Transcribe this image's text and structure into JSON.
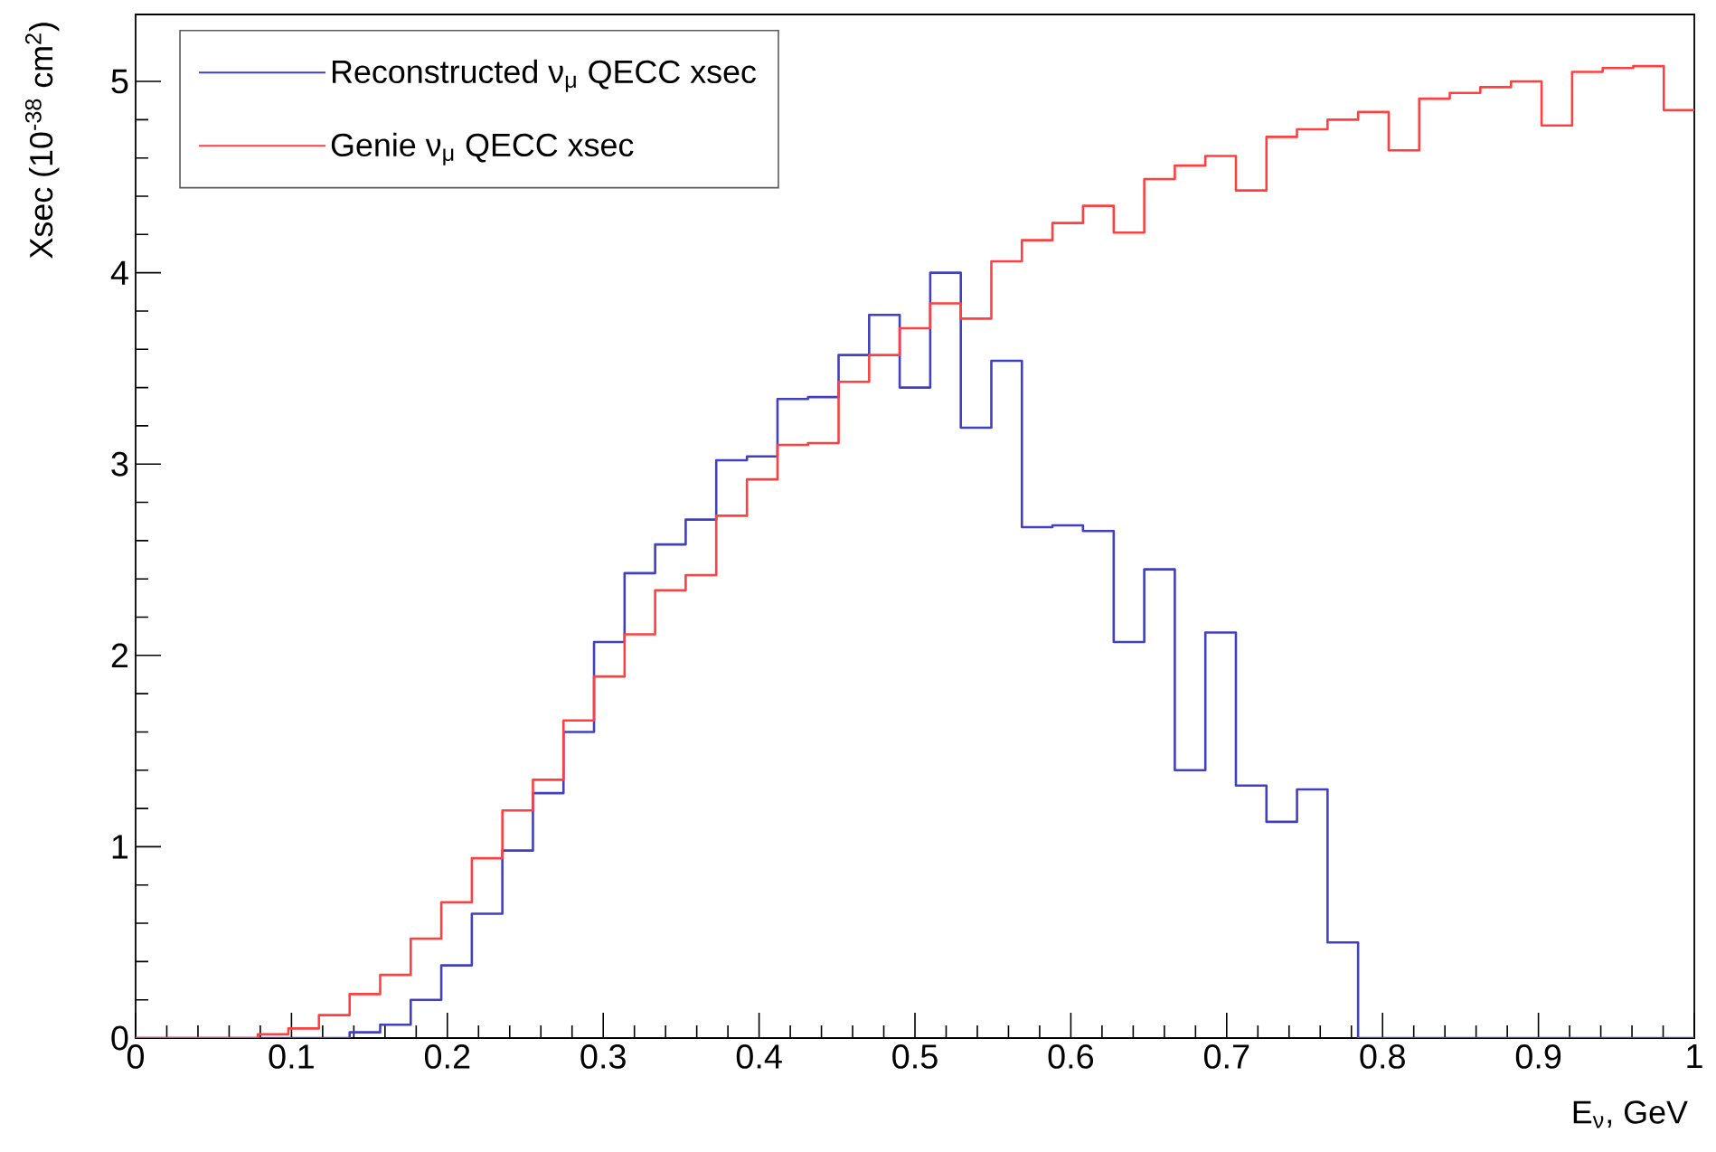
{
  "chart_data": {
    "type": "histogram",
    "xlabel": "E$_{ν}$, GeV",
    "ylabel": "Xsec (10$^{-38}$ cm$^{2}$)",
    "bins": [
      0,
      0.0196,
      0.0392,
      0.0588,
      0.0784,
      0.098,
      0.1176,
      0.1373,
      0.1569,
      0.1765,
      0.1961,
      0.2157,
      0.2353,
      0.2549,
      0.2745,
      0.2941,
      0.3137,
      0.3333,
      0.3529,
      0.3725,
      0.3922,
      0.4118,
      0.4314,
      0.451,
      0.4706,
      0.4902,
      0.5098,
      0.5294,
      0.549,
      0.5686,
      0.5882,
      0.6078,
      0.6275,
      0.6471,
      0.6667,
      0.6863,
      0.7059,
      0.7255,
      0.7451,
      0.7647,
      0.7843,
      0.8039,
      0.8235,
      0.8431,
      0.8627,
      0.8824,
      0.902,
      0.9216,
      0.9412,
      0.9608,
      0.9804,
      1
    ],
    "series": [
      {
        "name": "Reconstructed ν$_{μ}$ QECC xsec",
        "color": "#4040c0",
        "values": [
          0,
          0,
          0,
          0,
          0,
          0,
          0,
          0.03,
          0.07,
          0.2,
          0.38,
          0.65,
          0.98,
          1.28,
          1.6,
          2.07,
          2.43,
          2.58,
          2.71,
          3.02,
          3.04,
          3.34,
          3.35,
          3.57,
          3.78,
          3.4,
          4.0,
          3.19,
          3.54,
          2.67,
          2.68,
          2.65,
          2.07,
          2.45,
          1.4,
          2.12,
          1.32,
          1.13,
          1.3,
          0.5,
          0,
          0,
          0,
          0,
          0,
          0,
          0,
          0,
          0,
          0,
          0
        ]
      },
      {
        "name": "Genie ν$_{μ}$ QECC xsec",
        "color": "#ff4040",
        "values": [
          0,
          0,
          0,
          0,
          0.02,
          0.05,
          0.12,
          0.23,
          0.33,
          0.52,
          0.71,
          0.94,
          1.19,
          1.35,
          1.66,
          1.89,
          2.11,
          2.34,
          2.42,
          2.73,
          2.92,
          3.1,
          3.11,
          3.43,
          3.57,
          3.71,
          3.84,
          3.76,
          4.06,
          4.17,
          4.26,
          4.35,
          4.21,
          4.49,
          4.56,
          4.61,
          4.43,
          4.71,
          4.75,
          4.8,
          4.84,
          4.64,
          4.91,
          4.94,
          4.97,
          5.0,
          4.77,
          5.05,
          5.07,
          5.08,
          4.85
        ]
      }
    ],
    "xlim": [
      0,
      1
    ],
    "ylim": [
      0,
      5.35
    ],
    "xticks": [
      0,
      0.1,
      0.2,
      0.3,
      0.4,
      0.5,
      0.6,
      0.7,
      0.8,
      0.9,
      1
    ],
    "yticks": [
      0,
      1,
      2,
      3,
      4,
      5
    ],
    "grid": false,
    "legend": "top left"
  }
}
